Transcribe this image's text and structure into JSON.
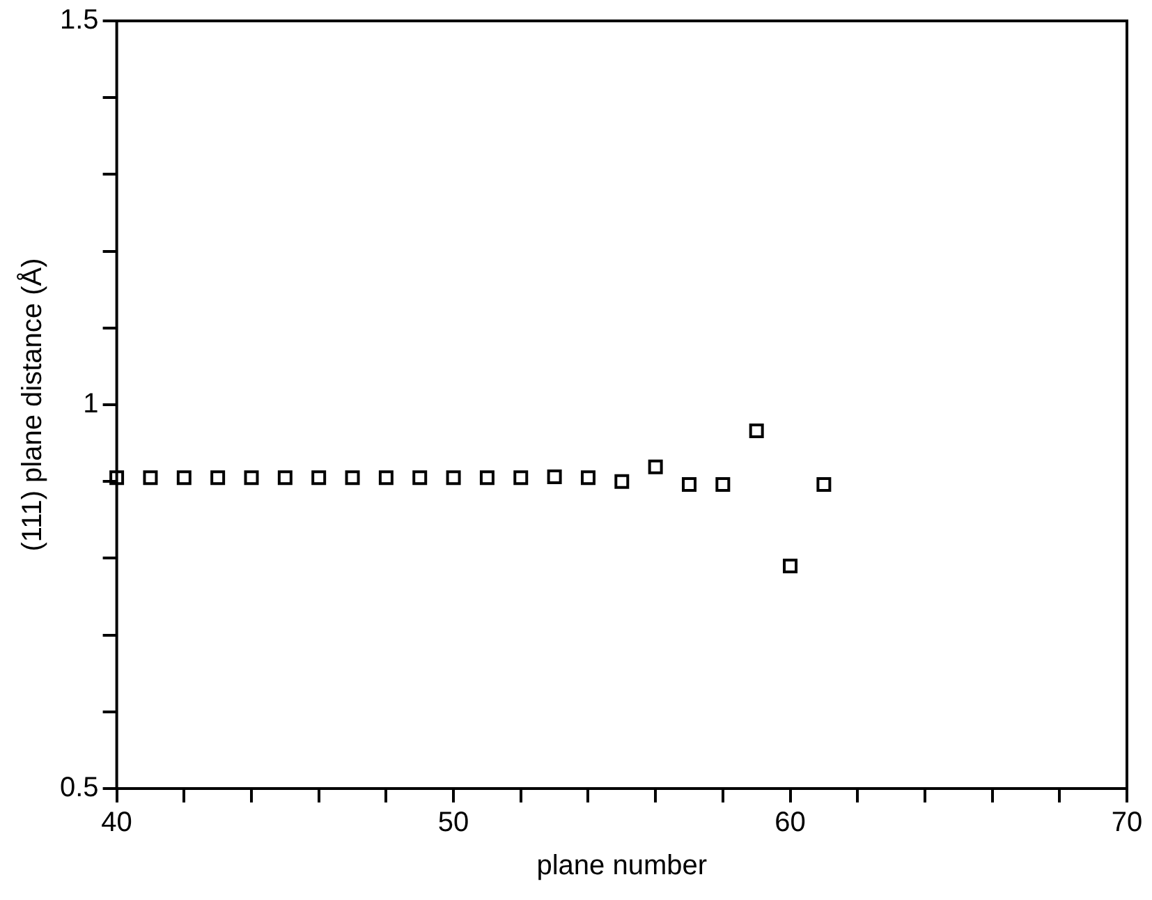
{
  "chart_data": {
    "type": "scatter",
    "xlabel": "plane number",
    "ylabel": "(111) plane distance (Å)",
    "x": [
      40,
      41,
      42,
      43,
      44,
      45,
      46,
      47,
      48,
      49,
      50,
      51,
      52,
      53,
      54,
      55,
      56,
      57,
      58,
      59,
      60,
      61
    ],
    "series": [
      {
        "color": "#000000",
        "values": [
          0.905,
          0.905,
          0.905,
          0.905,
          0.905,
          0.905,
          0.905,
          0.905,
          0.905,
          0.905,
          0.905,
          0.905,
          0.905,
          0.906,
          0.905,
          0.9,
          0.919,
          0.896,
          0.896,
          0.966,
          0.79,
          0.896
        ]
      }
    ],
    "marker": "square",
    "xlim": [
      40,
      70
    ],
    "ylim": [
      0.5,
      1.5
    ],
    "xticks": [
      40,
      {
        "value": 42,
        "label": null
      },
      {
        "value": 44,
        "label": null
      },
      {
        "value": 46,
        "label": null
      },
      {
        "value": 48,
        "label": null
      },
      50,
      {
        "value": 52,
        "label": null
      },
      {
        "value": 54,
        "label": null
      },
      {
        "value": 56,
        "label": null
      },
      {
        "value": 58,
        "label": null
      },
      60,
      {
        "value": 62,
        "label": null
      },
      {
        "value": 64,
        "label": null
      },
      {
        "value": 66,
        "label": null
      },
      {
        "value": 68,
        "label": null
      },
      70
    ],
    "yticks": [
      0.5,
      {
        "value": 0.6,
        "label": null
      },
      {
        "value": 0.7,
        "label": null
      },
      {
        "value": 0.8,
        "label": null
      },
      {
        "value": 0.9,
        "label": null
      },
      1,
      {
        "value": 1.1,
        "label": null
      },
      {
        "value": 1.2,
        "label": null
      },
      {
        "value": 1.3,
        "label": null
      },
      {
        "value": 1.4,
        "label": null
      },
      1.5
    ],
    "grid": false,
    "legend": false
  }
}
